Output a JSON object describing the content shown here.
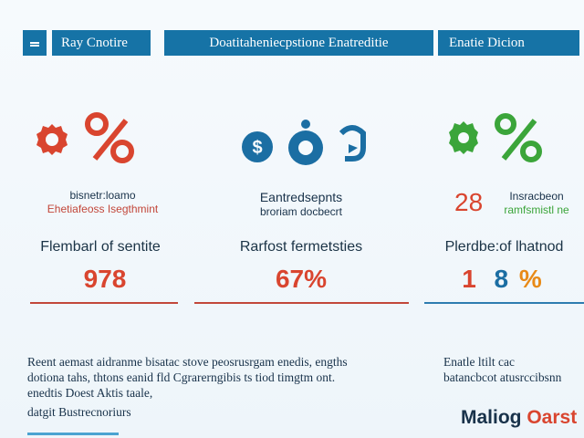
{
  "header": {
    "tab1": "Ray Cnotire",
    "tab2": "Doatitaheniecpstione Enatreditie",
    "tab3": "Enatie Dicion"
  },
  "colors": {
    "red": "#d9452f",
    "blue": "#1b6ea3",
    "green": "#3ba53a",
    "navy": "#18324a",
    "orange": "#e88a17",
    "rule_red": "#c2473a",
    "rule_blue": "#2e7cb0"
  },
  "icons": {
    "left": [
      "gear-icon",
      "percent-icon"
    ],
    "middle": [
      "dollar-icon",
      "target-icon",
      "arrow-icon"
    ],
    "right": [
      "gear-icon",
      "percent-icon"
    ]
  },
  "left": {
    "desc1": "bisnetr:loamo",
    "desc2": "Ehetiafeoss Isegthmint",
    "label": "Flembarl of sentite",
    "value": "978"
  },
  "middle": {
    "desc1": "Eantredsepnts",
    "desc2": "broriam docbecrt",
    "label": "Rarfost fermetsties",
    "value": "67%"
  },
  "right": {
    "num": "28",
    "desc1": "Insracbeon",
    "desc2": "ramfsmistl ne",
    "label": "Plerdbe:of lhatnod",
    "value_a": "1",
    "value_b": "8",
    "value_c": "%"
  },
  "paragraphs": {
    "left_1": "Reent aemast aidranme bisatac stove peosrusrgam enedis, engths",
    "left_2": "dotiona tahs, thtons eanid fld Cgrarerngibis ts tiod timgtm ont.",
    "left_3": "enedtis Doest Aktis taale,",
    "left_4": "datgit Bustrecnoriurs",
    "right_1": "Enatle ltilt cac",
    "right_2": "batancbcot atusrccibsnn"
  },
  "brand": {
    "part1": "Maliog",
    "part2": "Oarst"
  }
}
